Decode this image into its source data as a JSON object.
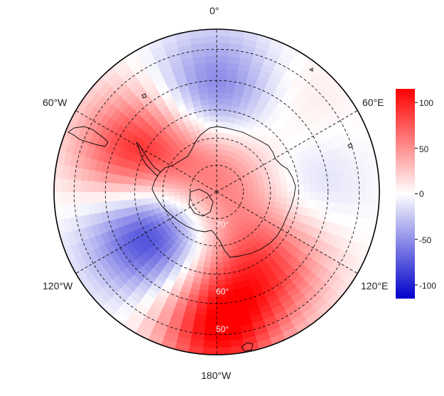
{
  "map": {
    "projection": "south-polar-stereographic",
    "longitude_labels": {
      "top": "0°",
      "upper_left": "60°W",
      "upper_right": "60°E",
      "lower_left": "120°W",
      "lower_right": "120°E",
      "bottom": "180°W"
    },
    "latitude_labels": [
      "70°",
      "60°",
      "50°"
    ],
    "gridlines": "dashed",
    "coastlines": true
  },
  "colorbar": {
    "ticks": [
      "100",
      "50",
      "0",
      "-50",
      "-100"
    ],
    "tick_values": [
      100,
      50,
      0,
      -50,
      -100
    ],
    "range": [
      -115,
      115
    ],
    "colormap": [
      "#0000cc",
      "#ffffff",
      "#ff0000"
    ]
  },
  "field": {
    "description_units": "anomaly",
    "pattern": "wave-3",
    "centers": [
      {
        "lon": 0,
        "lat": -55,
        "value": -70
      },
      {
        "lon": 40,
        "lat": -52,
        "value": 20
      },
      {
        "lon": 85,
        "lat": -62,
        "value": -30
      },
      {
        "lon": 145,
        "lat": -58,
        "value": 75
      },
      {
        "lon": -120,
        "lat": -63,
        "value": -110
      },
      {
        "lon": -65,
        "lat": -58,
        "value": 105
      },
      {
        "lon": 0,
        "lat": -85,
        "value": 70
      },
      {
        "lon": 180,
        "lat": -42,
        "value": 110
      }
    ]
  }
}
